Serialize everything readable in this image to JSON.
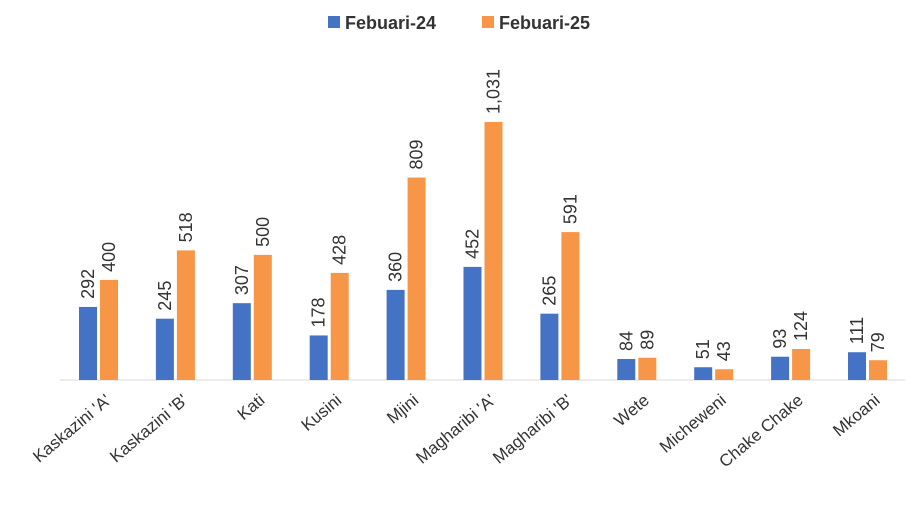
{
  "chart_data": {
    "type": "bar",
    "categories": [
      "Kaskazini 'A'",
      "Kaskazini 'B'",
      "Kati",
      "Kusini",
      "Mjini",
      "Magharibi 'A'",
      "Magharibi 'B'",
      "Wete",
      "Micheweni",
      "Chake Chake",
      "Mkoani"
    ],
    "series": [
      {
        "name": "Febuari-24",
        "color": "#4472c4",
        "values": [
          292,
          245,
          307,
          178,
          360,
          452,
          265,
          84,
          51,
          93,
          111
        ]
      },
      {
        "name": "Febuari-25",
        "color": "#f79646",
        "values": [
          400,
          518,
          500,
          428,
          809,
          1031,
          591,
          89,
          43,
          124,
          79
        ],
        "value_labels": [
          "400",
          "518",
          "500",
          "428",
          "809",
          "1,031",
          "591",
          "89",
          "43",
          "124",
          "79"
        ]
      }
    ],
    "legend": "top"
  }
}
